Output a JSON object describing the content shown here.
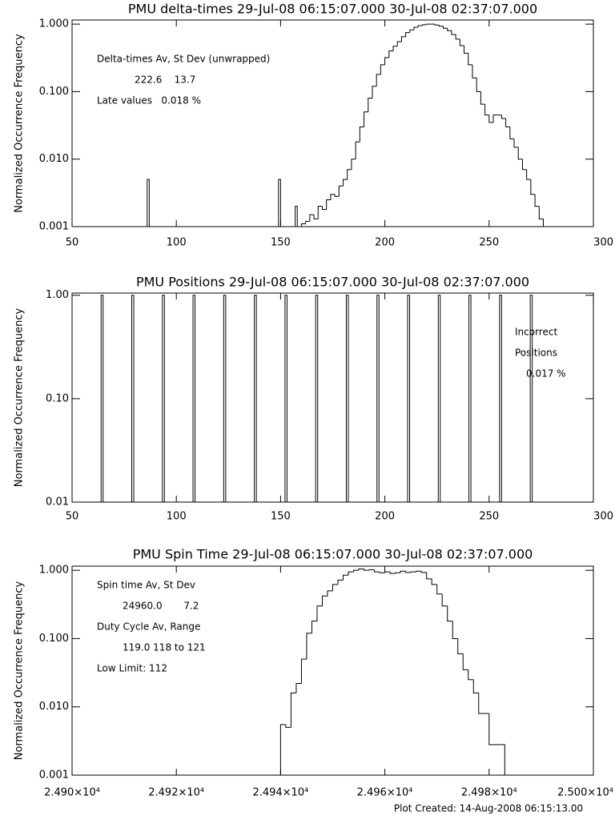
{
  "charts": [
    {
      "chart_data": {
        "type": "step",
        "title": "PMU delta-times 29-Jul-08 06:15:07.000 30-Jul-08 02:37:07.000",
        "y_label": "Normalized Occurrence Frequency",
        "ylog": true,
        "color": "#000000",
        "xlim": [
          50,
          300
        ],
        "xticks": [
          50,
          100,
          150,
          200,
          250,
          300
        ],
        "ylim": [
          0.001,
          1.15
        ],
        "yticks": [
          0.001,
          {
            "value": 0.01,
            "label": "0.010"
          },
          {
            "value": 0.1,
            "label": "0.100"
          },
          {
            "value": 1,
            "label": "1.000"
          }
        ],
        "x": [
          86,
          149,
          157,
          160,
          162,
          164,
          166,
          168,
          170,
          172,
          174,
          176,
          178,
          180,
          182,
          184,
          186,
          188,
          190,
          192,
          194,
          196,
          198,
          200,
          202,
          204,
          206,
          208,
          210,
          212,
          214,
          216,
          218,
          220,
          222,
          224,
          226,
          228,
          230,
          232,
          234,
          236,
          238,
          240,
          242,
          244,
          246,
          248,
          250,
          252,
          254,
          256,
          258,
          260,
          262,
          264,
          266,
          268,
          270,
          272,
          274,
          276
        ],
        "values": [
          0.005,
          0.005,
          0.002,
          0.0011,
          0.0012,
          0.0015,
          0.0013,
          0.002,
          0.0018,
          0.0025,
          0.003,
          0.0028,
          0.004,
          0.005,
          0.007,
          0.01,
          0.018,
          0.03,
          0.05,
          0.08,
          0.12,
          0.18,
          0.25,
          0.32,
          0.4,
          0.47,
          0.55,
          0.65,
          0.75,
          0.82,
          0.9,
          0.95,
          0.98,
          1.0,
          1.0,
          0.97,
          0.93,
          0.87,
          0.8,
          0.7,
          0.6,
          0.48,
          0.37,
          0.25,
          0.16,
          0.1,
          0.065,
          0.045,
          0.035,
          0.045,
          0.045,
          0.04,
          0.03,
          0.02,
          0.015,
          0.01,
          0.007,
          0.005,
          0.003,
          0.002,
          0.0013,
          0.001
        ],
        "annotations": [
          "Delta-times Av, St Dev (unwrapped)",
          "222.6    13.7",
          "Late values   0.018 %"
        ]
      }
    },
    {
      "chart_data": {
        "type": "bar",
        "title": "PMU Positions 29-Jul-08 06:15:07.000 30-Jul-08 02:37:07.000",
        "y_label": "Normalized Occurrence Frequency",
        "ylog": true,
        "color": "#000000",
        "xlim": [
          50,
          300
        ],
        "xticks": [
          50,
          100,
          150,
          200,
          250,
          300
        ],
        "ylim": [
          0.01,
          1.05
        ],
        "yticks": [
          0.01,
          {
            "value": 0.1,
            "label": "0.10"
          },
          {
            "value": 1,
            "label": "1.00"
          }
        ],
        "x": [
          64.3,
          79,
          93.7,
          108.4,
          123.1,
          137.8,
          152.5,
          167.2,
          181.9,
          196.6,
          211.3,
          226,
          240.7,
          255.4,
          270.1
        ],
        "values": [
          1,
          1,
          1,
          1,
          1,
          1,
          1,
          1,
          1,
          1,
          1,
          1,
          1,
          1,
          1
        ],
        "annotations": [
          "Incorrect",
          "Positions",
          "0.017 %"
        ]
      }
    },
    {
      "chart_data": {
        "type": "step",
        "title": "PMU Spin Time 29-Jul-08 06:15:07.000 30-Jul-08 02:37:07.000",
        "y_label": "Normalized Occurrence Frequency",
        "ylog": true,
        "color": "#000000",
        "xlim": [
          24900,
          25000
        ],
        "xticks": [
          {
            "value": 24900,
            "label": "2.490×10⁴"
          },
          {
            "value": 24920,
            "label": "2.492×10⁴"
          },
          {
            "value": 24940,
            "label": "2.494×10⁴"
          },
          {
            "value": 24960,
            "label": "2.496×10⁴"
          },
          {
            "value": 24980,
            "label": "2.498×10⁴"
          },
          {
            "value": 25000,
            "label": "2.500×10⁴"
          }
        ],
        "ylim": [
          0.001,
          1.15
        ],
        "yticks": [
          0.001,
          {
            "value": 0.01,
            "label": "0.010"
          },
          {
            "value": 0.1,
            "label": "0.100"
          },
          {
            "value": 1,
            "label": "1.000"
          }
        ],
        "x": [
          24940,
          24941,
          24942,
          24943,
          24944,
          24945,
          24946,
          24947,
          24948,
          24949,
          24950,
          24951,
          24952,
          24953,
          24954,
          24955,
          24956,
          24957,
          24958,
          24959,
          24960,
          24961,
          24962,
          24963,
          24964,
          24965,
          24966,
          24967,
          24968,
          24969,
          24970,
          24971,
          24972,
          24973,
          24974,
          24975,
          24976,
          24977,
          24978,
          24979,
          24980,
          24981,
          24982
        ],
        "values": [
          0.0055,
          0.005,
          0.016,
          0.022,
          0.05,
          0.12,
          0.18,
          0.3,
          0.42,
          0.5,
          0.62,
          0.72,
          0.85,
          0.95,
          1.0,
          1.05,
          1.0,
          1.02,
          0.95,
          0.92,
          0.95,
          0.9,
          0.92,
          0.97,
          0.93,
          0.95,
          0.97,
          0.93,
          0.75,
          0.62,
          0.45,
          0.3,
          0.18,
          0.1,
          0.06,
          0.035,
          0.025,
          0.016,
          0.008,
          0.008,
          0.0028,
          0.0028,
          0.0028
        ],
        "annotations": [
          "Spin time Av, St Dev",
          "24960.0       7.2",
          "Duty Cycle Av, Range",
          "119.0 118 to 121",
          "Low Limit: 112"
        ]
      }
    }
  ],
  "footer": "Plot Created: 14-Aug-2008 06:15:13.00"
}
